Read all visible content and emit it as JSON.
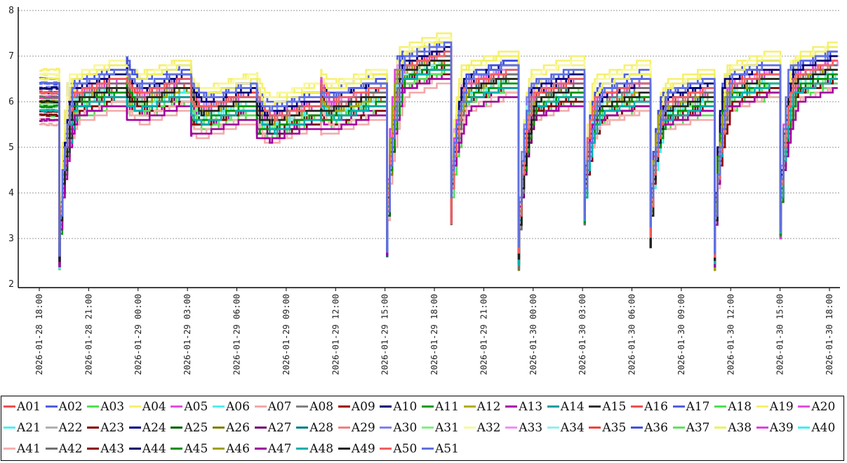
{
  "chart_data": {
    "type": "line",
    "title": "",
    "xlabel": "",
    "ylabel": "",
    "ylim": [
      2,
      8
    ],
    "yticks": [
      "2",
      "3",
      "4",
      "5",
      "6",
      "7",
      "8"
    ],
    "x_start_hours": 0,
    "x_end_hours": 48,
    "xtick_labels": [
      "2026-01-28  18:00",
      "2026-01-28  21:00",
      "2026-01-29  00:00",
      "2026-01-29  03:00",
      "2026-01-29  06:00",
      "2026-01-29  09:00",
      "2026-01-29  12:00",
      "2026-01-29  15:00",
      "2026-01-29  18:00",
      "2026-01-29  21:00",
      "2026-01-30  00:00",
      "2026-01-30  03:00",
      "2026-01-30  06:00",
      "2026-01-30  09:00",
      "2026-01-30  12:00",
      "2026-01-30  15:00",
      "2026-01-30  18:00"
    ],
    "grid": true,
    "legend_position": "bottom",
    "series_model": "Each series (hours since 2026-01-28 18:00) starts near its base level, drops sharply at each event time, recovers to its plateau and drifts until the next event.",
    "events": [
      {
        "t": 1.2,
        "min": 2.3,
        "peak": 6.3
      },
      {
        "t": 5.3,
        "min": null,
        "peak": 6.3
      },
      {
        "t": 9.2,
        "min": null,
        "peak": 6.0
      },
      {
        "t": 13.2,
        "min": null,
        "peak": 5.8
      },
      {
        "t": 17.1,
        "min": null,
        "peak": 6.1
      },
      {
        "t": 21.1,
        "min": 2.6,
        "peak": 6.9
      },
      {
        "t": 25.0,
        "min": 3.3,
        "peak": 6.5
      },
      {
        "t": 29.1,
        "min": 2.3,
        "peak": 6.3
      },
      {
        "t": 33.1,
        "min": 3.3,
        "peak": 6.2
      },
      {
        "t": 37.1,
        "min": 2.8,
        "peak": 6.1
      },
      {
        "t": 41.0,
        "min": 2.3,
        "peak": 6.5
      },
      {
        "t": 45.0,
        "min": 3.0,
        "peak": 6.7
      }
    ],
    "series": [
      {
        "name": "A01",
        "color": "#f05050",
        "base": 6.0
      },
      {
        "name": "A02",
        "color": "#5060e0",
        "base": 6.4
      },
      {
        "name": "A03",
        "color": "#50e050",
        "base": 5.6
      },
      {
        "name": "A04",
        "color": "#f6f070",
        "base": 6.7
      },
      {
        "name": "A05",
        "color": "#e050e0",
        "base": 6.2
      },
      {
        "name": "A06",
        "color": "#50f0f0",
        "base": 5.9
      },
      {
        "name": "A07",
        "color": "#f4a8a8",
        "base": 5.5
      },
      {
        "name": "A08",
        "color": "#808080",
        "base": 6.1
      },
      {
        "name": "A09",
        "color": "#a00000",
        "base": 5.8
      },
      {
        "name": "A10",
        "color": "#000080",
        "base": 6.3
      },
      {
        "name": "A11",
        "color": "#00a000",
        "base": 5.9
      },
      {
        "name": "A12",
        "color": "#b0b000",
        "base": 6.0
      },
      {
        "name": "A13",
        "color": "#b000b0",
        "base": 5.7
      },
      {
        "name": "A14",
        "color": "#00a0a0",
        "base": 5.8
      },
      {
        "name": "A15",
        "color": "#303030",
        "base": 6.0
      },
      {
        "name": "A16",
        "color": "#f05050",
        "base": 6.1
      },
      {
        "name": "A17",
        "color": "#5060e0",
        "base": 6.5
      },
      {
        "name": "A18",
        "color": "#50e050",
        "base": 5.7
      },
      {
        "name": "A19",
        "color": "#f6f070",
        "base": 6.6
      },
      {
        "name": "A20",
        "color": "#e050e0",
        "base": 6.2
      },
      {
        "name": "A21",
        "color": "#50f0f0",
        "base": 5.9
      },
      {
        "name": "A22",
        "color": "#b0b0b0",
        "base": 6.0
      },
      {
        "name": "A23",
        "color": "#800000",
        "base": 5.7
      },
      {
        "name": "A24",
        "color": "#000080",
        "base": 6.2
      },
      {
        "name": "A25",
        "color": "#006000",
        "base": 5.9
      },
      {
        "name": "A26",
        "color": "#808000",
        "base": 6.0
      },
      {
        "name": "A27",
        "color": "#700070",
        "base": 5.8
      },
      {
        "name": "A28",
        "color": "#008080",
        "base": 6.0
      },
      {
        "name": "A29",
        "color": "#f08080",
        "base": 6.1
      },
      {
        "name": "A30",
        "color": "#8080f0",
        "base": 6.3
      },
      {
        "name": "A31",
        "color": "#80f080",
        "base": 5.9
      },
      {
        "name": "A32",
        "color": "#f8f8a0",
        "base": 6.6
      },
      {
        "name": "A33",
        "color": "#f090f0",
        "base": 6.2
      },
      {
        "name": "A34",
        "color": "#90f0f0",
        "base": 6.0
      },
      {
        "name": "A35",
        "color": "#f04040",
        "base": 6.2
      },
      {
        "name": "A36",
        "color": "#4050e0",
        "base": 6.4
      },
      {
        "name": "A37",
        "color": "#60e060",
        "base": 5.8
      },
      {
        "name": "A38",
        "color": "#f0f060",
        "base": 6.5
      },
      {
        "name": "A39",
        "color": "#e040e0",
        "base": 6.1
      },
      {
        "name": "A40",
        "color": "#40f0f0",
        "base": 6.0
      },
      {
        "name": "A41",
        "color": "#f4b0b0",
        "base": 5.6
      },
      {
        "name": "A42",
        "color": "#707070",
        "base": 6.1
      },
      {
        "name": "A43",
        "color": "#900000",
        "base": 5.8
      },
      {
        "name": "A44",
        "color": "#000070",
        "base": 6.3
      },
      {
        "name": "A45",
        "color": "#009000",
        "base": 5.9
      },
      {
        "name": "A46",
        "color": "#a0a000",
        "base": 6.0
      },
      {
        "name": "A47",
        "color": "#a000a0",
        "base": 5.6
      },
      {
        "name": "A48",
        "color": "#00b0b0",
        "base": 5.8
      },
      {
        "name": "A49",
        "color": "#202020",
        "base": 6.0
      },
      {
        "name": "A50",
        "color": "#f06060",
        "base": 6.2
      },
      {
        "name": "A51",
        "color": "#6070e0",
        "base": 6.4
      }
    ]
  }
}
